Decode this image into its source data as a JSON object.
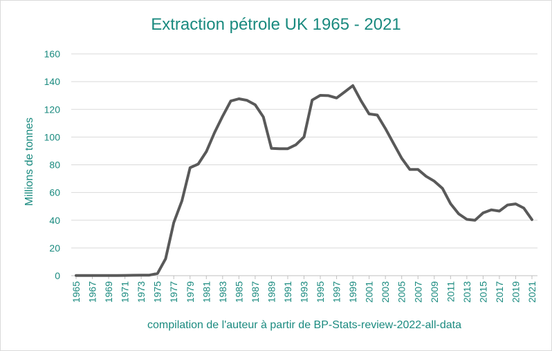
{
  "chart_data": {
    "type": "line",
    "title": "Extraction pétrole UK 1965 - 2021",
    "xlabel": "compilation de l'auteur à partir de BP-Stats-review-2022-all-data",
    "ylabel": "Millions de tonnes",
    "ylim": [
      0,
      160
    ],
    "yticks": [
      0,
      20,
      40,
      60,
      80,
      100,
      120,
      140,
      160
    ],
    "xtick_labels": [
      "1965",
      "1967",
      "1969",
      "1971",
      "1973",
      "1975",
      "1977",
      "1979",
      "1981",
      "1983",
      "1985",
      "1987",
      "1989",
      "1991",
      "1993",
      "1995",
      "1997",
      "1999",
      "2001",
      "2003",
      "2005",
      "2007",
      "2009",
      "2011",
      "2013",
      "2015",
      "2017",
      "2019",
      "2021"
    ],
    "grid": true,
    "legend": "none",
    "colors": {
      "title": "#1a8a7f",
      "series": "#595959",
      "grid": "#d9d9d9"
    },
    "x": [
      1965,
      1966,
      1967,
      1968,
      1969,
      1970,
      1971,
      1972,
      1973,
      1974,
      1975,
      1976,
      1977,
      1978,
      1979,
      1980,
      1981,
      1982,
      1983,
      1984,
      1985,
      1986,
      1987,
      1988,
      1989,
      1990,
      1991,
      1992,
      1993,
      1994,
      1995,
      1996,
      1997,
      1998,
      1999,
      2000,
      2001,
      2002,
      2003,
      2004,
      2005,
      2006,
      2007,
      2008,
      2009,
      2010,
      2011,
      2012,
      2013,
      2014,
      2015,
      2016,
      2017,
      2018,
      2019,
      2020,
      2021
    ],
    "series": [
      {
        "values": [
          0.1,
          0.1,
          0.1,
          0.1,
          0.1,
          0.1,
          0.2,
          0.3,
          0.4,
          0.4,
          1.6,
          12.2,
          38.3,
          54.0,
          77.9,
          80.5,
          89.5,
          103.2,
          115.0,
          126.0,
          127.6,
          126.5,
          123.3,
          114.5,
          91.8,
          91.6,
          91.6,
          94.4,
          100.1,
          126.7,
          130.1,
          129.9,
          128.2,
          132.6,
          137.1,
          126.2,
          116.7,
          115.9,
          106.1,
          95.4,
          84.7,
          76.6,
          76.6,
          71.7,
          68.2,
          63.0,
          52.0,
          44.6,
          40.6,
          40.0,
          45.3,
          47.5,
          46.6,
          51.0,
          51.8,
          48.8,
          40.4
        ]
      }
    ]
  }
}
